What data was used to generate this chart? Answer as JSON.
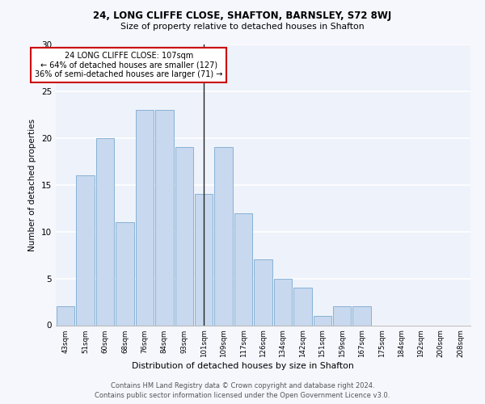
{
  "title1": "24, LONG CLIFFE CLOSE, SHAFTON, BARNSLEY, S72 8WJ",
  "title2": "Size of property relative to detached houses in Shafton",
  "xlabel": "Distribution of detached houses by size in Shafton",
  "ylabel": "Number of detached properties",
  "categories": [
    "43sqm",
    "51sqm",
    "60sqm",
    "68sqm",
    "76sqm",
    "84sqm",
    "93sqm",
    "101sqm",
    "109sqm",
    "117sqm",
    "126sqm",
    "134sqm",
    "142sqm",
    "151sqm",
    "159sqm",
    "167sqm",
    "175sqm",
    "184sqm",
    "192sqm",
    "200sqm",
    "208sqm"
  ],
  "values": [
    2,
    16,
    20,
    11,
    23,
    23,
    19,
    14,
    19,
    12,
    7,
    5,
    4,
    1,
    2,
    2,
    0,
    0,
    0,
    0,
    0
  ],
  "bar_color": "#c8d8ee",
  "bar_edge_color": "#7aaad0",
  "highlight_index": 7,
  "vline_x": 7,
  "annotation_title": "24 LONG CLIFFE CLOSE: 107sqm",
  "annotation_line1": "← 64% of detached houses are smaller (127)",
  "annotation_line2": "36% of semi-detached houses are larger (71) →",
  "annotation_box_color": "#ffffff",
  "annotation_box_edge": "#cc0000",
  "ylim": [
    0,
    30
  ],
  "yticks": [
    0,
    5,
    10,
    15,
    20,
    25,
    30
  ],
  "background_color": "#eef2fa",
  "fig_background_color": "#f5f7fd",
  "grid_color": "#ffffff",
  "footnote1": "Contains HM Land Registry data © Crown copyright and database right 2024.",
  "footnote2": "Contains public sector information licensed under the Open Government Licence v3.0."
}
